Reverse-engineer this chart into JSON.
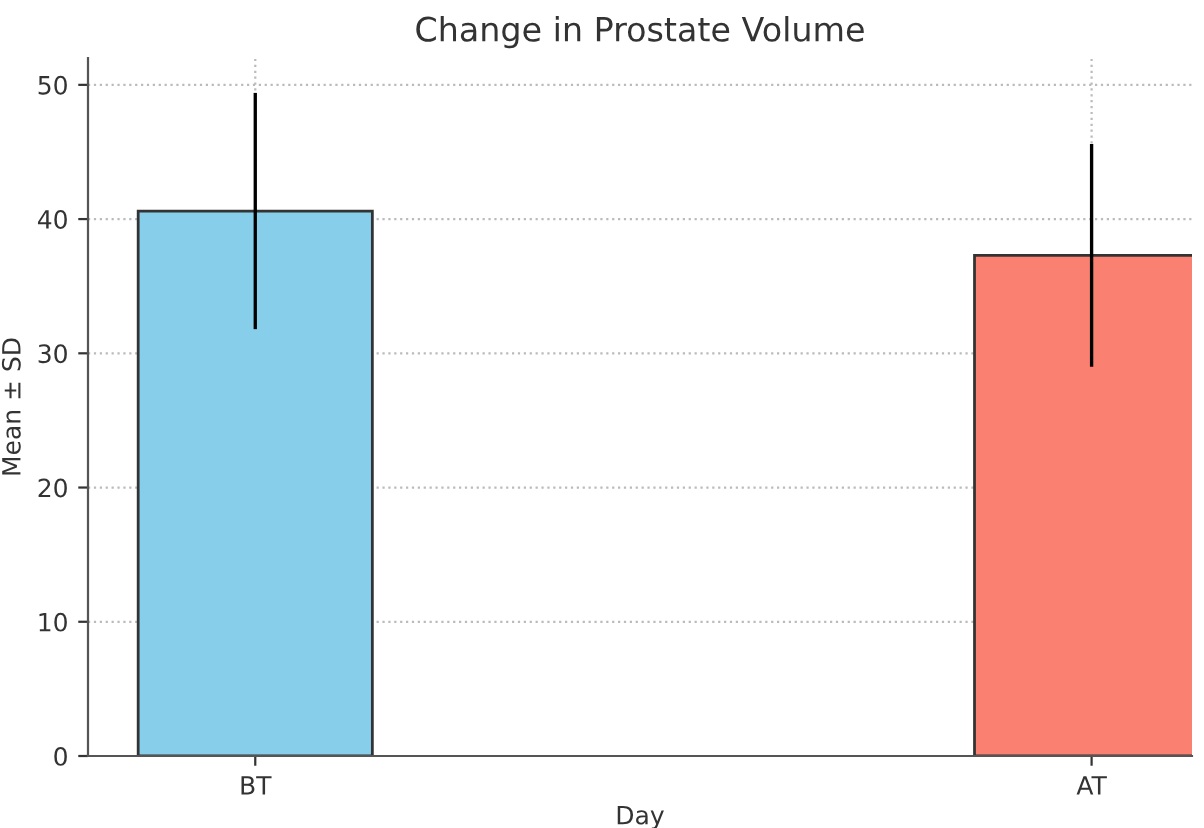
{
  "chart_data": {
    "type": "bar",
    "title": "Change in Prostate Volume",
    "xlabel": "Day",
    "ylabel": "Mean ± SD",
    "categories": [
      "BT",
      "AT"
    ],
    "values": [
      40.6,
      37.3
    ],
    "errors": [
      8.8,
      8.3
    ],
    "colors": [
      "#87ceeb",
      "#fa8072"
    ],
    "ylim": [
      0,
      52
    ],
    "yticks": [
      0,
      10,
      20,
      30,
      40,
      50
    ],
    "grid": true
  }
}
